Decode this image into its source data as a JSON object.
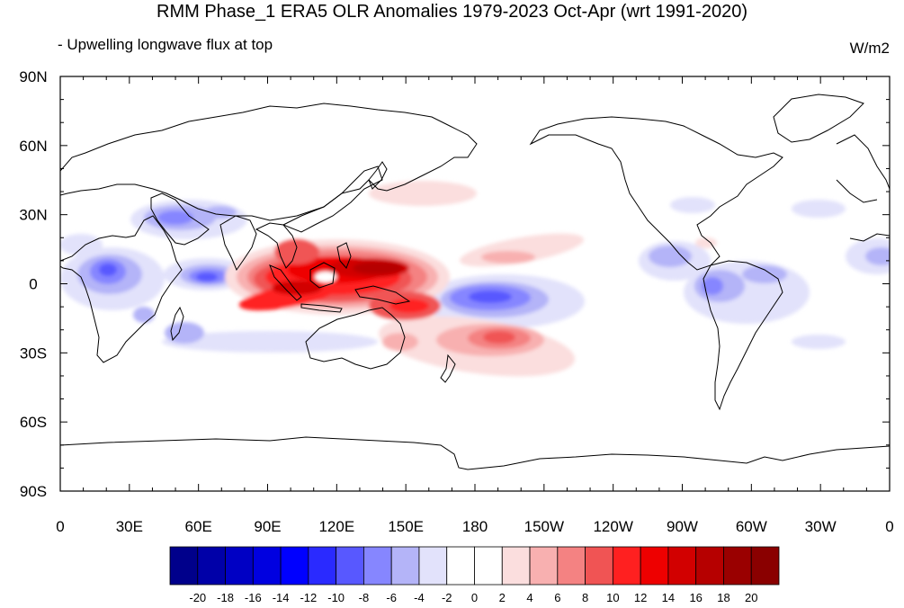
{
  "title": "RMM Phase_1 ERA5 OLR Anomalies 1979-2023 Oct-Apr (wrt 1991-2020)",
  "subtitle": "- Upwelling longwave flux at top",
  "units": "W/m2",
  "map": {
    "projection": "cylindrical-equidistant",
    "lon_range": [
      0,
      360
    ],
    "lat_range": [
      -90,
      90
    ],
    "lat_ticks": [
      "90N",
      "60N",
      "30N",
      "0",
      "30S",
      "60S",
      "90S"
    ],
    "lon_ticks": [
      "0",
      "30E",
      "60E",
      "90E",
      "120E",
      "150E",
      "180",
      "150W",
      "120W",
      "90W",
      "60W",
      "30W",
      "0"
    ]
  },
  "colorbar": {
    "labels": [
      "-20",
      "-18",
      "-16",
      "-14",
      "-12",
      "-10",
      "-8",
      "-6",
      "-4",
      "-2",
      "0",
      "2",
      "4",
      "6",
      "8",
      "10",
      "12",
      "14",
      "16",
      "18",
      "20"
    ],
    "colors": [
      "#00008b",
      "#0000a8",
      "#0000c4",
      "#0000e0",
      "#0000ff",
      "#2a2aff",
      "#5858ff",
      "#8686ff",
      "#b4b4f8",
      "#e2e2fb",
      "#ffffff",
      "#ffffff",
      "#fbdede",
      "#f8b0b0",
      "#f48282",
      "#f05454",
      "#ff2020",
      "#ee0000",
      "#d20000",
      "#b60000",
      "#9a0000",
      "#8a0000"
    ]
  },
  "anomaly_features": [
    {
      "name": "Maritime Continent positive anomaly",
      "lon": 125,
      "lat": 0,
      "value": 18
    },
    {
      "name": "South Pacific positive anomaly",
      "lon": 212,
      "lat": -22,
      "value": 10
    },
    {
      "name": "North Pacific weak positive anomaly",
      "lon": 160,
      "lat": 28,
      "value": 4
    },
    {
      "name": "Central Pacific negative anomaly",
      "lon": 200,
      "lat": -5,
      "value": -10
    },
    {
      "name": "Western Indian Ocean negative anomaly",
      "lon": 62,
      "lat": 2,
      "value": -10
    },
    {
      "name": "Central Africa negative anomaly",
      "lon": 20,
      "lat": 2,
      "value": -8
    },
    {
      "name": "Arabia negative anomaly",
      "lon": 45,
      "lat": 25,
      "value": -8
    },
    {
      "name": "South America negative anomaly",
      "lon": 290,
      "lat": -5,
      "value": -6
    },
    {
      "name": "Atlantic negative anomaly",
      "lon": 345,
      "lat": 10,
      "value": -6
    }
  ]
}
